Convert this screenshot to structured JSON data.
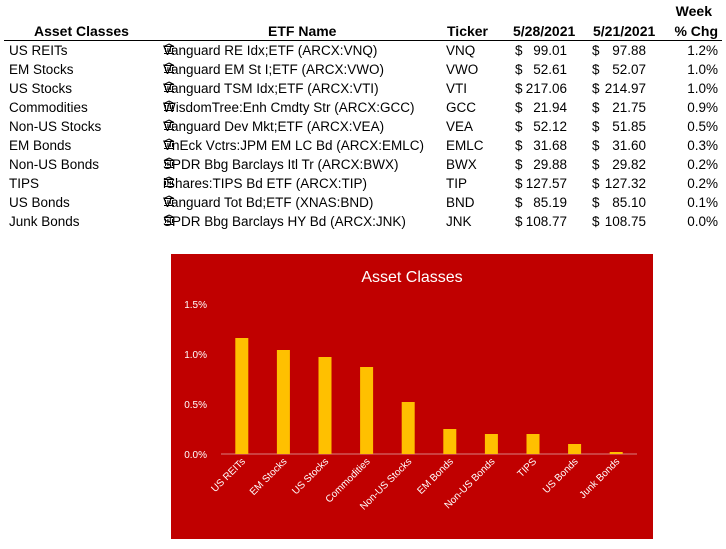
{
  "table": {
    "headers": {
      "asset_classes": "Asset Classes",
      "etf_name": "ETF Name",
      "ticker": "Ticker",
      "date1": "5/28/2021",
      "date2": "5/21/2021",
      "week": "Week",
      "pct_chg": "% Chg"
    },
    "rows": [
      {
        "asset_class": "US REITs",
        "etf_name": "Vanguard RE Idx;ETF (ARCX:VNQ)",
        "ticker": "VNQ",
        "cur1": "$",
        "price1": "99.01",
        "cur2": "$",
        "price2": "97.88",
        "chg": "1.2%"
      },
      {
        "asset_class": "EM Stocks",
        "etf_name": "Vanguard EM St I;ETF (ARCX:VWO)",
        "ticker": "VWO",
        "cur1": "$",
        "price1": "52.61",
        "cur2": "$",
        "price2": "52.07",
        "chg": "1.0%"
      },
      {
        "asset_class": "US Stocks",
        "etf_name": "Vanguard TSM Idx;ETF (ARCX:VTI)",
        "ticker": "VTI",
        "cur1": "$",
        "price1": "217.06",
        "cur2": "$",
        "price2": "214.97",
        "chg": "1.0%"
      },
      {
        "asset_class": "Commodities",
        "etf_name": "WisdomTree:Enh Cmdty Str (ARCX:GCC)",
        "ticker": "GCC",
        "cur1": "$",
        "price1": "21.94",
        "cur2": "$",
        "price2": "21.75",
        "chg": "0.9%"
      },
      {
        "asset_class": "Non-US Stocks",
        "etf_name": "Vanguard Dev Mkt;ETF (ARCX:VEA)",
        "ticker": "VEA",
        "cur1": "$",
        "price1": "52.12",
        "cur2": "$",
        "price2": "51.85",
        "chg": "0.5%"
      },
      {
        "asset_class": "EM Bonds",
        "etf_name": "VnEck Vctrs:JPM EM LC Bd (ARCX:EMLC)",
        "ticker": "EMLC",
        "cur1": "$",
        "price1": "31.68",
        "cur2": "$",
        "price2": "31.60",
        "chg": "0.3%"
      },
      {
        "asset_class": "Non-US Bonds",
        "etf_name": "SPDR Bbg Barclays Itl Tr (ARCX:BWX)",
        "ticker": "BWX",
        "cur1": "$",
        "price1": "29.88",
        "cur2": "$",
        "price2": "29.82",
        "chg": "0.2%"
      },
      {
        "asset_class": "TIPS",
        "etf_name": "iShares:TIPS Bd ETF (ARCX:TIP)",
        "ticker": "TIP",
        "cur1": "$",
        "price1": "127.57",
        "cur2": "$",
        "price2": "127.32",
        "chg": "0.2%"
      },
      {
        "asset_class": "US Bonds",
        "etf_name": "Vanguard Tot Bd;ETF (XNAS:BND)",
        "ticker": "BND",
        "cur1": "$",
        "price1": "85.19",
        "cur2": "$",
        "price2": "85.10",
        "chg": "0.1%"
      },
      {
        "asset_class": "Junk Bonds",
        "etf_name": "SPDR Bbg Barclays HY Bd (ARCX:JNK)",
        "ticker": "JNK",
        "cur1": "$",
        "price1": "108.77",
        "cur2": "$",
        "price2": "108.75",
        "chg": "0.0%"
      }
    ],
    "row_icon": "bank-icon"
  },
  "chart_data": {
    "type": "bar",
    "title": "Asset Classes",
    "categories": [
      "US REITs",
      "EM Stocks",
      "US Stocks",
      "Commodities",
      "Non-US Stocks",
      "EM Bonds",
      "Non-US Bonds",
      "TIPS",
      "US Bonds",
      "Junk Bonds"
    ],
    "values": [
      1.16,
      1.04,
      0.97,
      0.87,
      0.52,
      0.25,
      0.2,
      0.2,
      0.1,
      0.02
    ],
    "ylim": [
      0,
      1.5
    ],
    "yticks": [
      "0.0%",
      "0.5%",
      "1.0%",
      "1.5%"
    ],
    "ytick_values": [
      0,
      0.5,
      1.0,
      1.5
    ],
    "grid": false,
    "legend": "none",
    "colors": {
      "background": "#c00000",
      "bar": "#ffc000",
      "text": "#ffffff"
    }
  }
}
